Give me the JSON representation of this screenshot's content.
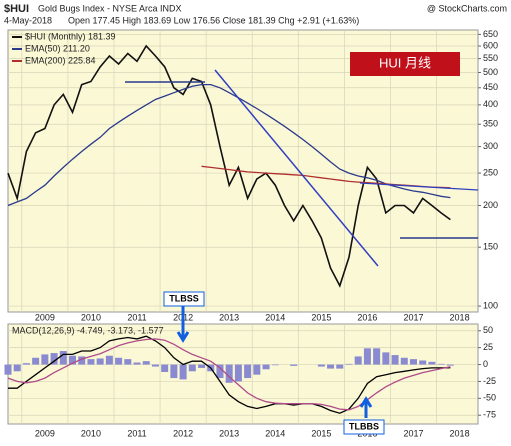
{
  "header": {
    "symbol": "$HUI",
    "name": "Gold Bugs Index - NYSE Arca INDX",
    "source": "@ StockCharts.com",
    "date": "4-May-2018",
    "quote": "Open 177.45  High 183.69  Low 176.56  Close 181.39  Chg +2.91 (+1.63%)"
  },
  "chart_data": [
    {
      "type": "line",
      "log_y": true,
      "grid": true,
      "legend": "top-left",
      "annotations": [
        "HUI 月线"
      ],
      "xlim": [
        2008.7,
        2018.9
      ],
      "xticks": [
        2009,
        2010,
        2011,
        2012,
        2013,
        2014,
        2015,
        2016,
        2017,
        2018
      ],
      "ylim": [
        96,
        670
      ],
      "yticks": [
        100,
        150,
        200,
        250,
        300,
        350,
        400,
        450,
        500,
        550,
        600,
        650
      ],
      "x": [
        2008.7,
        2008.9,
        2009.1,
        2009.3,
        2009.5,
        2009.7,
        2009.9,
        2010.1,
        2010.3,
        2010.5,
        2010.7,
        2010.9,
        2011.1,
        2011.3,
        2011.5,
        2011.7,
        2011.9,
        2012.1,
        2012.3,
        2012.5,
        2012.7,
        2012.9,
        2013.1,
        2013.3,
        2013.5,
        2013.7,
        2013.9,
        2014.1,
        2014.3,
        2014.5,
        2014.7,
        2014.9,
        2015.1,
        2015.3,
        2015.5,
        2015.7,
        2015.9,
        2016.1,
        2016.3,
        2016.5,
        2016.7,
        2016.9,
        2017.1,
        2017.3,
        2017.5,
        2017.7,
        2017.9,
        2018.1,
        2018.3
      ],
      "series": [
        {
          "name": "$HUI (Monthly) 181.39",
          "color": "#111111",
          "values": [
            250,
            210,
            290,
            330,
            340,
            400,
            430,
            380,
            460,
            470,
            520,
            560,
            530,
            570,
            540,
            600,
            560,
            520,
            450,
            430,
            480,
            470,
            400,
            300,
            230,
            260,
            210,
            240,
            250,
            230,
            200,
            180,
            200,
            180,
            160,
            130,
            115,
            140,
            200,
            260,
            240,
            190,
            200,
            200,
            190,
            210,
            200,
            190,
            181.39
          ]
        },
        {
          "name": "EMA(50) 211.20",
          "color": "#2a3a8c",
          "values": [
            200,
            205,
            210,
            220,
            230,
            245,
            260,
            275,
            290,
            305,
            320,
            340,
            355,
            370,
            385,
            400,
            415,
            425,
            435,
            445,
            455,
            460,
            460,
            450,
            435,
            420,
            405,
            390,
            375,
            360,
            345,
            330,
            315,
            300,
            285,
            270,
            257,
            250,
            245,
            242,
            238,
            232,
            228,
            224,
            221,
            219,
            216,
            213,
            211.2
          ]
        },
        {
          "name": "EMA(200) 225.84",
          "color": "#b03030",
          "values": [
            null,
            null,
            null,
            null,
            null,
            null,
            null,
            null,
            null,
            null,
            null,
            null,
            null,
            null,
            null,
            null,
            null,
            null,
            null,
            null,
            null,
            262,
            260,
            258,
            256,
            254,
            252,
            251,
            250,
            249,
            248,
            247,
            246,
            244,
            242,
            240,
            238,
            236,
            235,
            234,
            233,
            232,
            231,
            230,
            229,
            228,
            227,
            226.5,
            225.84
          ]
        }
      ]
    },
    {
      "type": "line",
      "grid": true,
      "title": "MACD(12,26,9) -4.749, -3.173, -1.577",
      "annotations": [
        "TLBSS",
        "TLBBS"
      ],
      "xlim": [
        2008.7,
        2018.9
      ],
      "xticks": [
        2009,
        2010,
        2011,
        2012,
        2013,
        2014,
        2015,
        2016,
        2017,
        2018
      ],
      "ylim": [
        -88,
        60
      ],
      "yticks": [
        50,
        25,
        0,
        -25,
        -50,
        -75
      ],
      "x": [
        2008.7,
        2008.9,
        2009.1,
        2009.3,
        2009.5,
        2009.7,
        2009.9,
        2010.1,
        2010.3,
        2010.5,
        2010.7,
        2010.9,
        2011.1,
        2011.3,
        2011.5,
        2011.7,
        2011.9,
        2012.1,
        2012.3,
        2012.5,
        2012.7,
        2012.9,
        2013.1,
        2013.3,
        2013.5,
        2013.7,
        2013.9,
        2014.1,
        2014.3,
        2014.5,
        2014.7,
        2014.9,
        2015.1,
        2015.3,
        2015.5,
        2015.7,
        2015.9,
        2016.1,
        2016.3,
        2016.5,
        2016.7,
        2016.9,
        2017.1,
        2017.3,
        2017.5,
        2017.7,
        2017.9,
        2018.1,
        2018.3
      ],
      "series": [
        {
          "type": "bar",
          "color": "#8a8ad0",
          "values": [
            -15,
            -10,
            2,
            10,
            15,
            17,
            20,
            13,
            12,
            8,
            9,
            13,
            10,
            8,
            3,
            5,
            -3,
            -11,
            -20,
            -22,
            -10,
            -5,
            -10,
            -20,
            -27,
            -25,
            -20,
            -15,
            -7,
            -1,
            0,
            -2,
            0,
            0,
            -3,
            -6,
            -6,
            1,
            12,
            24,
            24,
            18,
            14,
            10,
            8,
            6,
            4,
            1,
            -1.577
          ]
        },
        {
          "color": "#000000",
          "values": [
            -35,
            -35,
            -25,
            -15,
            -5,
            5,
            15,
            15,
            20,
            20,
            25,
            35,
            38,
            40,
            38,
            42,
            35,
            25,
            10,
            0,
            5,
            5,
            -5,
            -25,
            -45,
            -55,
            -62,
            -65,
            -62,
            -58,
            -58,
            -60,
            -58,
            -58,
            -62,
            -68,
            -72,
            -66,
            -50,
            -28,
            -18,
            -15,
            -12,
            -10,
            -8,
            -6,
            -5,
            -5,
            -4.749
          ]
        },
        {
          "color": "#b04a8a",
          "values": [
            -20,
            -25,
            -27,
            -25,
            -20,
            -12,
            -5,
            2,
            8,
            12,
            16,
            22,
            28,
            32,
            35,
            37,
            38,
            36,
            30,
            22,
            15,
            10,
            5,
            -5,
            -18,
            -30,
            -42,
            -50,
            -55,
            -57,
            -58,
            -58,
            -58,
            -58,
            -59,
            -62,
            -66,
            -67,
            -62,
            -52,
            -42,
            -33,
            -26,
            -20,
            -16,
            -12,
            -9,
            -6,
            -3.173
          ]
        }
      ]
    }
  ]
}
